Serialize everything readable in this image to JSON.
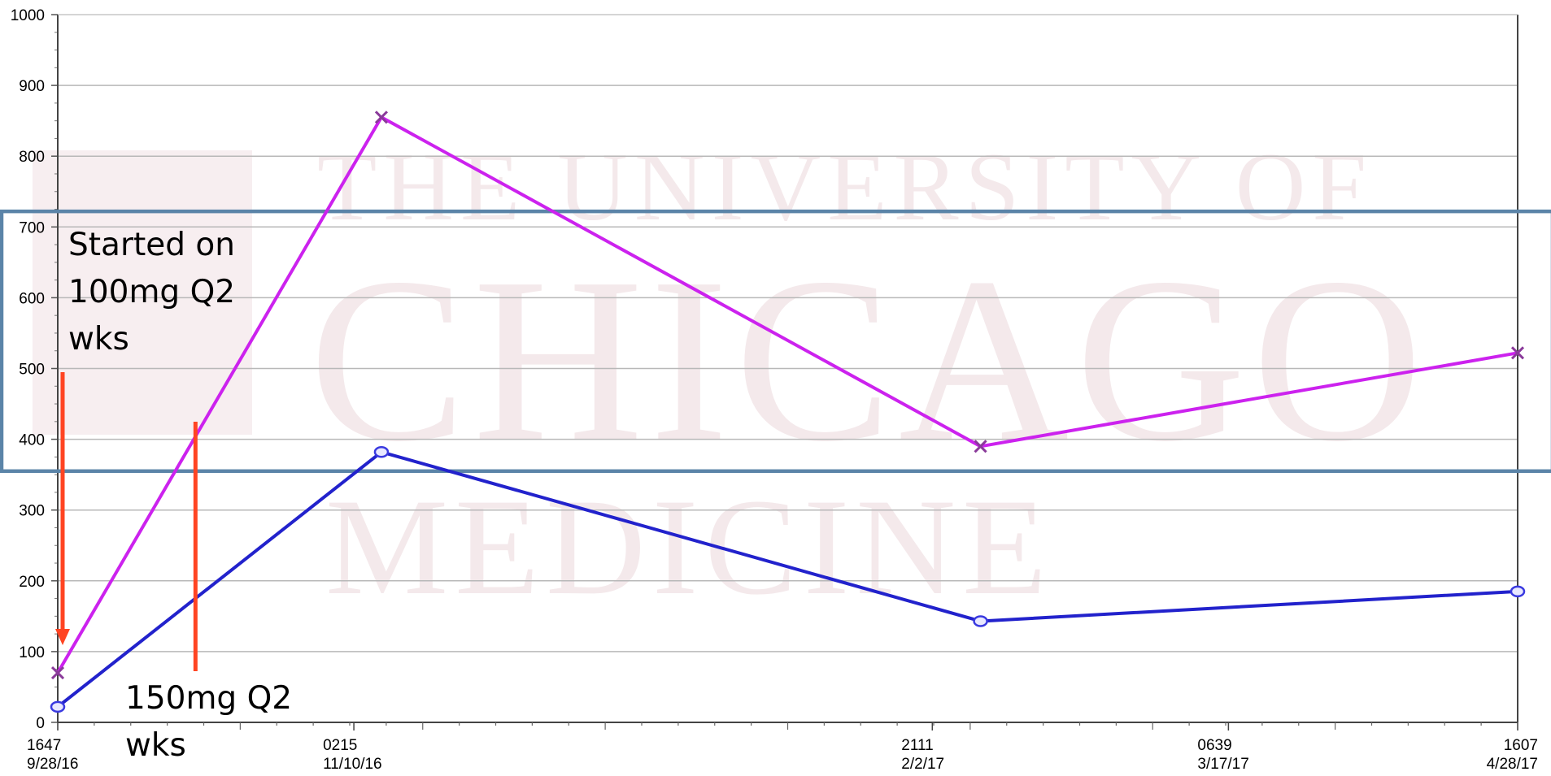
{
  "chart_data": {
    "type": "line",
    "title": "",
    "xlabel": "",
    "ylabel": "",
    "ylim": [
      0,
      1000
    ],
    "yticks": [
      0,
      100,
      200,
      300,
      400,
      500,
      600,
      700,
      800,
      900,
      1000
    ],
    "grid": true,
    "x_tick_labels": [
      {
        "time": "1647",
        "date": "9/28/16"
      },
      {
        "time": "0215",
        "date": "11/10/16"
      },
      {
        "time": "2111",
        "date": "2/2/17"
      },
      {
        "time": "0639",
        "date": "3/17/17"
      },
      {
        "time": "1607",
        "date": "4/28/17"
      }
    ],
    "series": [
      {
        "color": "#cc22ee",
        "marker": "x",
        "points": [
          {
            "x": "9/28/16",
            "y": 70
          },
          {
            "x": "11/14/16",
            "y": 855
          },
          {
            "x": "2/9/17",
            "y": 390
          },
          {
            "x": "4/28/17",
            "y": 522
          }
        ]
      },
      {
        "color": "#2222cc",
        "marker": "circle",
        "points": [
          {
            "x": "9/28/16",
            "y": 22
          },
          {
            "x": "11/14/16",
            "y": 382
          },
          {
            "x": "2/9/17",
            "y": 143
          },
          {
            "x": "4/28/17",
            "y": 185
          }
        ]
      }
    ],
    "reference_band": {
      "y_from": 355,
      "y_to": 722,
      "color": "#5b84a8"
    },
    "annotations": [
      {
        "lines": [
          "Started on",
          "100mg Q2",
          "wks"
        ],
        "arrow_x": "9/28/16",
        "color": "#ff4422"
      },
      {
        "lines": [
          "150mg Q2",
          "wks"
        ],
        "arrow_x": "10/18/16",
        "color": "#ff4422"
      }
    ]
  },
  "watermark": {
    "lines": [
      "THE UNIVERSITY OF",
      "CHICAGO",
      "MEDICINE"
    ]
  }
}
